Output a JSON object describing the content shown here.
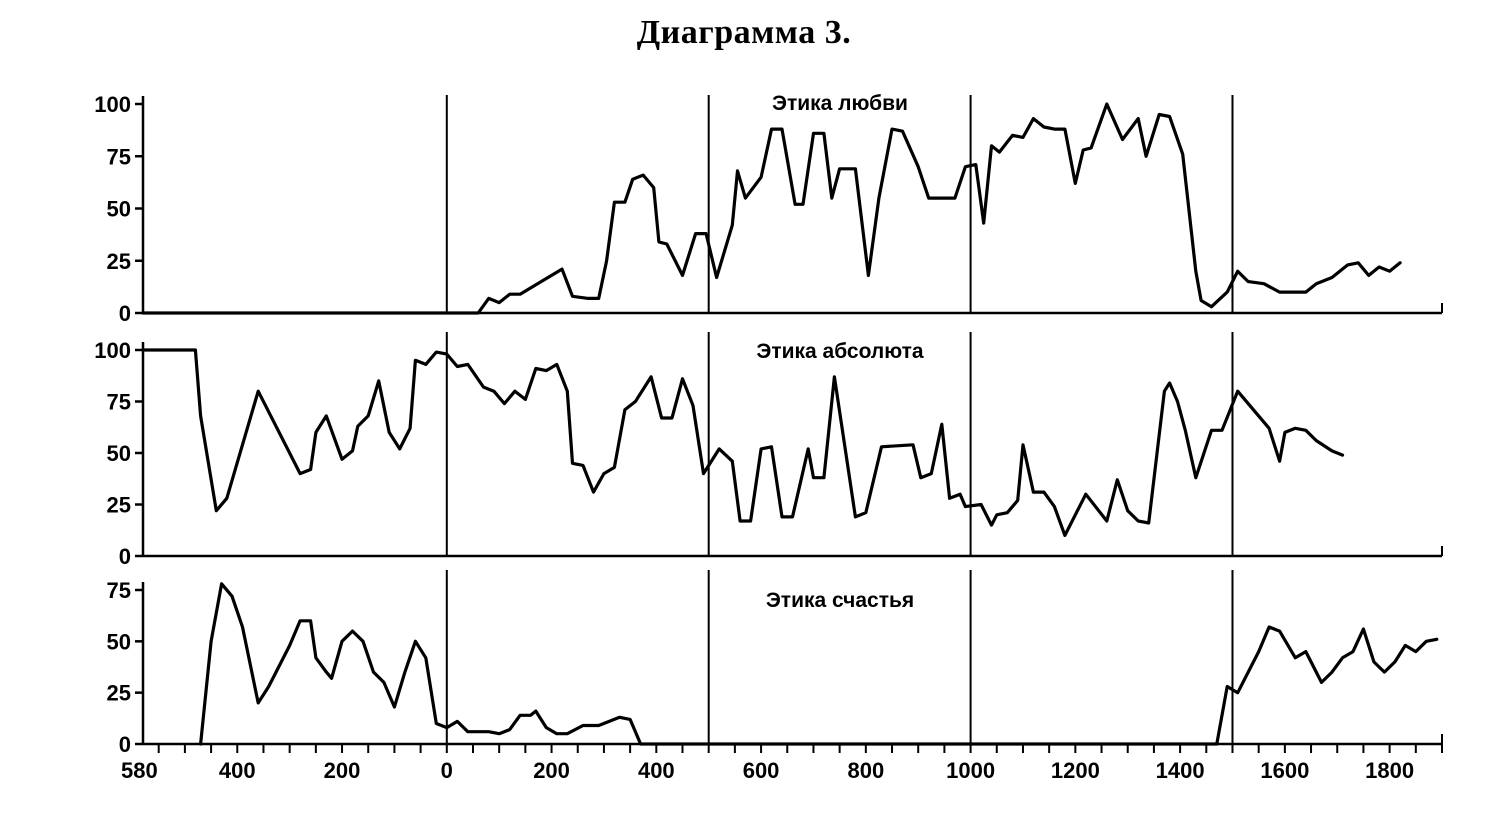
{
  "title": "Диаграмма 3.",
  "chart_data": {
    "type": "line",
    "title": "Диаграмма 3.",
    "x_axis": {
      "xlim": [
        -580,
        1900
      ],
      "tick_labels": [
        {
          "x": -580,
          "label": "580"
        },
        {
          "x": -400,
          "label": "400"
        },
        {
          "x": -200,
          "label": "200"
        },
        {
          "x": 0,
          "label": "0"
        },
        {
          "x": 200,
          "label": "200"
        },
        {
          "x": 400,
          "label": "400"
        },
        {
          "x": 600,
          "label": "600"
        },
        {
          "x": 800,
          "label": "800"
        },
        {
          "x": 1000,
          "label": "1000"
        },
        {
          "x": 1200,
          "label": "1200"
        },
        {
          "x": 1400,
          "label": "1400"
        },
        {
          "x": 1600,
          "label": "1600"
        },
        {
          "x": 1800,
          "label": "1800"
        }
      ],
      "minor_ticks_every": 50
    },
    "century_dividers": [
      0,
      500,
      1000,
      1500
    ],
    "panels": [
      {
        "label": "Этика любви",
        "ylim": [
          0,
          100
        ],
        "yticks": [
          0,
          25,
          50,
          75,
          100
        ],
        "points": [
          [
            -580,
            0
          ],
          [
            60,
            0
          ],
          [
            80,
            7
          ],
          [
            100,
            5
          ],
          [
            120,
            9
          ],
          [
            140,
            9
          ],
          [
            180,
            15
          ],
          [
            220,
            21
          ],
          [
            240,
            8
          ],
          [
            270,
            7
          ],
          [
            290,
            7
          ],
          [
            305,
            25
          ],
          [
            320,
            53
          ],
          [
            340,
            53
          ],
          [
            355,
            64
          ],
          [
            375,
            66
          ],
          [
            395,
            60
          ],
          [
            405,
            34
          ],
          [
            420,
            33
          ],
          [
            450,
            18
          ],
          [
            475,
            38
          ],
          [
            495,
            38
          ],
          [
            515,
            17
          ],
          [
            545,
            42
          ],
          [
            555,
            68
          ],
          [
            570,
            55
          ],
          [
            600,
            65
          ],
          [
            620,
            88
          ],
          [
            640,
            88
          ],
          [
            665,
            52
          ],
          [
            680,
            52
          ],
          [
            700,
            86
          ],
          [
            720,
            86
          ],
          [
            735,
            55
          ],
          [
            750,
            69
          ],
          [
            780,
            69
          ],
          [
            805,
            18
          ],
          [
            825,
            55
          ],
          [
            850,
            88
          ],
          [
            870,
            87
          ],
          [
            900,
            70
          ],
          [
            920,
            55
          ],
          [
            970,
            55
          ],
          [
            990,
            70
          ],
          [
            1010,
            71
          ],
          [
            1025,
            43
          ],
          [
            1040,
            80
          ],
          [
            1055,
            77
          ],
          [
            1080,
            85
          ],
          [
            1100,
            84
          ],
          [
            1120,
            93
          ],
          [
            1140,
            89
          ],
          [
            1160,
            88
          ],
          [
            1180,
            88
          ],
          [
            1200,
            62
          ],
          [
            1215,
            78
          ],
          [
            1230,
            79
          ],
          [
            1260,
            100
          ],
          [
            1290,
            83
          ],
          [
            1320,
            93
          ],
          [
            1335,
            75
          ],
          [
            1360,
            95
          ],
          [
            1380,
            94
          ],
          [
            1405,
            76
          ],
          [
            1430,
            20
          ],
          [
            1440,
            6
          ],
          [
            1460,
            3
          ],
          [
            1490,
            10
          ],
          [
            1510,
            20
          ],
          [
            1530,
            15
          ],
          [
            1560,
            14
          ],
          [
            1590,
            10
          ],
          [
            1640,
            10
          ],
          [
            1660,
            14
          ],
          [
            1690,
            17
          ],
          [
            1720,
            23
          ],
          [
            1740,
            24
          ],
          [
            1760,
            18
          ],
          [
            1780,
            22
          ],
          [
            1800,
            20
          ],
          [
            1820,
            24
          ]
        ]
      },
      {
        "label": "Этика абсолюта",
        "ylim": [
          0,
          100
        ],
        "yticks": [
          0,
          25,
          50,
          75,
          100
        ],
        "points": [
          [
            -580,
            100
          ],
          [
            -480,
            100
          ],
          [
            -470,
            68
          ],
          [
            -440,
            22
          ],
          [
            -420,
            28
          ],
          [
            -360,
            80
          ],
          [
            -280,
            40
          ],
          [
            -260,
            42
          ],
          [
            -250,
            60
          ],
          [
            -230,
            68
          ],
          [
            -200,
            47
          ],
          [
            -180,
            51
          ],
          [
            -170,
            63
          ],
          [
            -150,
            68
          ],
          [
            -130,
            85
          ],
          [
            -110,
            60
          ],
          [
            -90,
            52
          ],
          [
            -70,
            62
          ],
          [
            -60,
            95
          ],
          [
            -40,
            93
          ],
          [
            -20,
            99
          ],
          [
            0,
            98
          ],
          [
            20,
            92
          ],
          [
            40,
            93
          ],
          [
            70,
            82
          ],
          [
            90,
            80
          ],
          [
            110,
            74
          ],
          [
            130,
            80
          ],
          [
            150,
            76
          ],
          [
            170,
            91
          ],
          [
            190,
            90
          ],
          [
            210,
            93
          ],
          [
            230,
            80
          ],
          [
            240,
            45
          ],
          [
            260,
            44
          ],
          [
            280,
            31
          ],
          [
            300,
            40
          ],
          [
            320,
            43
          ],
          [
            340,
            71
          ],
          [
            360,
            75
          ],
          [
            390,
            87
          ],
          [
            410,
            67
          ],
          [
            430,
            67
          ],
          [
            450,
            86
          ],
          [
            470,
            73
          ],
          [
            490,
            40
          ],
          [
            520,
            52
          ],
          [
            545,
            46
          ],
          [
            560,
            17
          ],
          [
            580,
            17
          ],
          [
            600,
            52
          ],
          [
            620,
            53
          ],
          [
            640,
            19
          ],
          [
            660,
            19
          ],
          [
            690,
            52
          ],
          [
            700,
            38
          ],
          [
            720,
            38
          ],
          [
            740,
            87
          ],
          [
            780,
            19
          ],
          [
            800,
            21
          ],
          [
            830,
            53
          ],
          [
            890,
            54
          ],
          [
            905,
            38
          ],
          [
            925,
            40
          ],
          [
            945,
            64
          ],
          [
            960,
            28
          ],
          [
            980,
            30
          ],
          [
            990,
            24
          ],
          [
            1020,
            25
          ],
          [
            1040,
            15
          ],
          [
            1050,
            20
          ],
          [
            1070,
            21
          ],
          [
            1090,
            27
          ],
          [
            1100,
            54
          ],
          [
            1120,
            31
          ],
          [
            1140,
            31
          ],
          [
            1160,
            24
          ],
          [
            1180,
            10
          ],
          [
            1220,
            30
          ],
          [
            1260,
            17
          ],
          [
            1280,
            37
          ],
          [
            1300,
            22
          ],
          [
            1320,
            17
          ],
          [
            1340,
            16
          ],
          [
            1370,
            80
          ],
          [
            1380,
            84
          ],
          [
            1395,
            75
          ],
          [
            1410,
            61
          ],
          [
            1430,
            38
          ],
          [
            1460,
            61
          ],
          [
            1480,
            61
          ],
          [
            1510,
            80
          ],
          [
            1570,
            62
          ],
          [
            1590,
            46
          ],
          [
            1600,
            60
          ],
          [
            1620,
            62
          ],
          [
            1640,
            61
          ],
          [
            1660,
            56
          ],
          [
            1690,
            51
          ],
          [
            1710,
            49
          ]
        ]
      },
      {
        "label": "Этика счастья",
        "ylim": [
          0,
          75
        ],
        "yticks": [
          0,
          25,
          50,
          75
        ],
        "points": [
          [
            -470,
            0
          ],
          [
            -450,
            50
          ],
          [
            -430,
            78
          ],
          [
            -410,
            72
          ],
          [
            -390,
            57
          ],
          [
            -360,
            20
          ],
          [
            -340,
            28
          ],
          [
            -300,
            48
          ],
          [
            -280,
            60
          ],
          [
            -260,
            60
          ],
          [
            -250,
            42
          ],
          [
            -230,
            35
          ],
          [
            -220,
            32
          ],
          [
            -200,
            50
          ],
          [
            -180,
            55
          ],
          [
            -160,
            50
          ],
          [
            -140,
            35
          ],
          [
            -120,
            30
          ],
          [
            -100,
            18
          ],
          [
            -80,
            35
          ],
          [
            -60,
            50
          ],
          [
            -40,
            42
          ],
          [
            -20,
            10
          ],
          [
            0,
            8
          ],
          [
            20,
            11
          ],
          [
            40,
            6
          ],
          [
            80,
            6
          ],
          [
            100,
            5
          ],
          [
            120,
            7
          ],
          [
            140,
            14
          ],
          [
            160,
            14
          ],
          [
            170,
            16
          ],
          [
            190,
            8
          ],
          [
            210,
            5
          ],
          [
            230,
            5
          ],
          [
            260,
            9
          ],
          [
            290,
            9
          ],
          [
            330,
            13
          ],
          [
            350,
            12
          ],
          [
            370,
            0
          ],
          [
            1470,
            0
          ],
          [
            1490,
            28
          ],
          [
            1510,
            25
          ],
          [
            1530,
            35
          ],
          [
            1550,
            45
          ],
          [
            1570,
            57
          ],
          [
            1590,
            55
          ],
          [
            1620,
            42
          ],
          [
            1640,
            45
          ],
          [
            1670,
            30
          ],
          [
            1690,
            35
          ],
          [
            1710,
            42
          ],
          [
            1730,
            45
          ],
          [
            1750,
            56
          ],
          [
            1770,
            40
          ],
          [
            1790,
            35
          ],
          [
            1810,
            40
          ],
          [
            1830,
            48
          ],
          [
            1850,
            45
          ],
          [
            1870,
            50
          ],
          [
            1890,
            51
          ]
        ]
      }
    ]
  }
}
